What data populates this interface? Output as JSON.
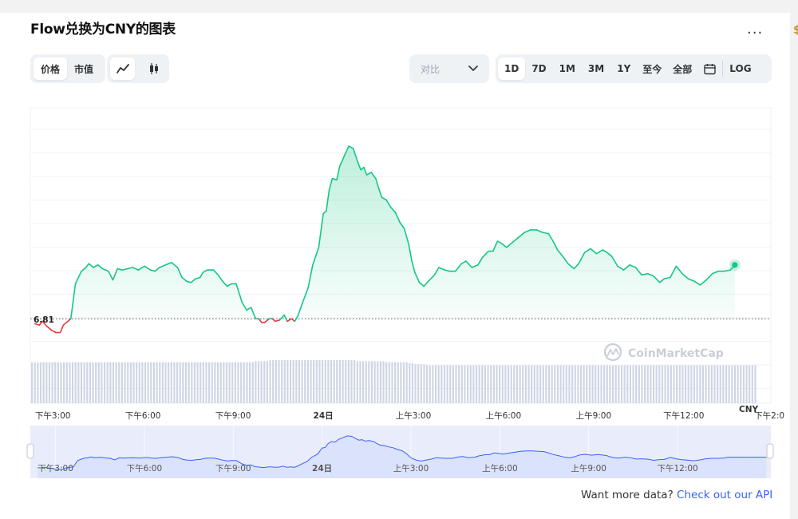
{
  "header": {
    "title": "Flow兑换为CNY的图表",
    "more_label": "...",
    "edge_glyph": "$"
  },
  "toolbar": {
    "type_tabs": [
      {
        "label": "价格",
        "active": true
      },
      {
        "label": "市值",
        "active": false
      }
    ],
    "view_modes": [
      {
        "icon": "line-chart-icon",
        "active": true
      },
      {
        "icon": "candlestick-icon",
        "active": false
      }
    ],
    "compare": {
      "label": "对比",
      "icon": "chevron-down-icon"
    },
    "ranges": [
      {
        "label": "1D",
        "active": true
      },
      {
        "label": "7D",
        "active": false
      },
      {
        "label": "1M",
        "active": false
      },
      {
        "label": "3M",
        "active": false
      },
      {
        "label": "1Y",
        "active": false
      },
      {
        "label": "至今",
        "active": false
      },
      {
        "label": "全部",
        "active": false
      }
    ],
    "calendar_icon": "calendar-icon",
    "log_label": "LOG"
  },
  "chart_data": {
    "type": "area",
    "baseline_value": 6.81,
    "baseline_label": "6.81",
    "currency_label": "CNY",
    "watermark": "CoinMarketCap",
    "x_tick_labels": [
      "下午3:00",
      "下午6:00",
      "下午9:00",
      "24日",
      "上午3:00",
      "上午6:00",
      "上午9:00",
      "下午12:00",
      "下午2:0"
    ],
    "x_tick_hours": [
      0,
      3,
      6,
      9,
      12,
      15,
      18,
      21,
      23.85
    ],
    "x_range_hours": [
      -0.75,
      23.9
    ],
    "y_range": [
      6.55,
      8.4
    ],
    "colors": {
      "up": "#16c784",
      "down": "#ea3943",
      "volume": "#cfd6e4",
      "nav_line": "#3861fb",
      "nav_fill": "#e3e8fb"
    },
    "series": [
      {
        "values": [
          [
            -0.6,
            6.77
          ],
          [
            -0.45,
            6.76
          ],
          [
            -0.35,
            6.79
          ],
          [
            -0.2,
            6.75
          ],
          [
            -0.05,
            6.72
          ],
          [
            0.1,
            6.7
          ],
          [
            0.25,
            6.7
          ],
          [
            0.35,
            6.76
          ],
          [
            0.5,
            6.79
          ],
          [
            0.6,
            6.81
          ],
          [
            0.75,
            7.09
          ],
          [
            0.95,
            7.19
          ],
          [
            1.1,
            7.22
          ],
          [
            1.2,
            7.25
          ],
          [
            1.35,
            7.22
          ],
          [
            1.5,
            7.24
          ],
          [
            1.65,
            7.21
          ],
          [
            1.85,
            7.19
          ],
          [
            2.0,
            7.12
          ],
          [
            2.15,
            7.21
          ],
          [
            2.3,
            7.2
          ],
          [
            2.5,
            7.21
          ],
          [
            2.65,
            7.22
          ],
          [
            2.85,
            7.2
          ],
          [
            3.05,
            7.23
          ],
          [
            3.25,
            7.2
          ],
          [
            3.4,
            7.19
          ],
          [
            3.55,
            7.22
          ],
          [
            3.75,
            7.24
          ],
          [
            3.95,
            7.26
          ],
          [
            4.15,
            7.22
          ],
          [
            4.3,
            7.14
          ],
          [
            4.45,
            7.11
          ],
          [
            4.6,
            7.1
          ],
          [
            4.75,
            7.13
          ],
          [
            4.9,
            7.14
          ],
          [
            5.0,
            7.18
          ],
          [
            5.15,
            7.2
          ],
          [
            5.35,
            7.2
          ],
          [
            5.5,
            7.16
          ],
          [
            5.65,
            7.11
          ],
          [
            5.8,
            7.07
          ],
          [
            5.95,
            7.09
          ],
          [
            6.1,
            7.09
          ],
          [
            6.3,
            6.94
          ],
          [
            6.45,
            6.88
          ],
          [
            6.6,
            6.9
          ],
          [
            6.75,
            6.81
          ],
          [
            6.85,
            6.81
          ],
          [
            6.95,
            6.78
          ],
          [
            7.05,
            6.78
          ],
          [
            7.2,
            6.81
          ],
          [
            7.3,
            6.81
          ],
          [
            7.4,
            6.79
          ],
          [
            7.55,
            6.8
          ],
          [
            7.7,
            6.84
          ],
          [
            7.8,
            6.79
          ],
          [
            7.95,
            6.81
          ],
          [
            8.05,
            6.79
          ],
          [
            8.15,
            6.83
          ],
          [
            8.3,
            6.93
          ],
          [
            8.5,
            7.06
          ],
          [
            8.65,
            7.24
          ],
          [
            8.85,
            7.38
          ],
          [
            9.0,
            7.65
          ],
          [
            9.1,
            7.67
          ],
          [
            9.2,
            7.84
          ],
          [
            9.3,
            7.93
          ],
          [
            9.45,
            7.92
          ],
          [
            9.55,
            8.03
          ],
          [
            9.7,
            8.11
          ],
          [
            9.85,
            8.19
          ],
          [
            10.0,
            8.17
          ],
          [
            10.15,
            8.06
          ],
          [
            10.25,
            8.0
          ],
          [
            10.35,
            8.02
          ],
          [
            10.45,
            7.96
          ],
          [
            10.6,
            7.98
          ],
          [
            10.75,
            7.93
          ],
          [
            10.85,
            7.85
          ],
          [
            10.95,
            7.78
          ],
          [
            11.1,
            7.76
          ],
          [
            11.25,
            7.7
          ],
          [
            11.4,
            7.66
          ],
          [
            11.55,
            7.58
          ],
          [
            11.7,
            7.53
          ],
          [
            11.85,
            7.4
          ],
          [
            11.95,
            7.27
          ],
          [
            12.05,
            7.18
          ],
          [
            12.2,
            7.1
          ],
          [
            12.35,
            7.07
          ],
          [
            12.5,
            7.11
          ],
          [
            12.7,
            7.16
          ],
          [
            12.85,
            7.22
          ],
          [
            13.05,
            7.2
          ],
          [
            13.2,
            7.19
          ],
          [
            13.4,
            7.19
          ],
          [
            13.6,
            7.25
          ],
          [
            13.75,
            7.27
          ],
          [
            13.95,
            7.22
          ],
          [
            14.15,
            7.24
          ],
          [
            14.3,
            7.3
          ],
          [
            14.5,
            7.35
          ],
          [
            14.65,
            7.35
          ],
          [
            14.8,
            7.43
          ],
          [
            14.95,
            7.41
          ],
          [
            15.1,
            7.38
          ],
          [
            15.3,
            7.42
          ],
          [
            15.5,
            7.46
          ],
          [
            15.7,
            7.5
          ],
          [
            15.9,
            7.52
          ],
          [
            16.1,
            7.52
          ],
          [
            16.3,
            7.5
          ],
          [
            16.5,
            7.49
          ],
          [
            16.65,
            7.43
          ],
          [
            16.8,
            7.36
          ],
          [
            17.0,
            7.3
          ],
          [
            17.15,
            7.25
          ],
          [
            17.35,
            7.21
          ],
          [
            17.5,
            7.25
          ],
          [
            17.7,
            7.34
          ],
          [
            17.9,
            7.37
          ],
          [
            18.1,
            7.33
          ],
          [
            18.3,
            7.36
          ],
          [
            18.45,
            7.34
          ],
          [
            18.6,
            7.31
          ],
          [
            18.8,
            7.23
          ],
          [
            19.0,
            7.2
          ],
          [
            19.2,
            7.24
          ],
          [
            19.4,
            7.22
          ],
          [
            19.6,
            7.16
          ],
          [
            19.8,
            7.17
          ],
          [
            20.0,
            7.15
          ],
          [
            20.2,
            7.1
          ],
          [
            20.35,
            7.13
          ],
          [
            20.55,
            7.14
          ],
          [
            20.75,
            7.23
          ],
          [
            20.95,
            7.17
          ],
          [
            21.15,
            7.13
          ],
          [
            21.35,
            7.11
          ],
          [
            21.55,
            7.08
          ],
          [
            21.75,
            7.12
          ],
          [
            21.95,
            7.17
          ],
          [
            22.15,
            7.19
          ],
          [
            22.35,
            7.19
          ],
          [
            22.55,
            7.2
          ],
          [
            22.7,
            7.24
          ]
        ]
      }
    ],
    "volume": [
      40,
      40,
      40,
      40,
      40,
      40,
      40,
      40,
      40,
      40,
      40,
      40,
      40,
      40,
      40,
      40,
      40,
      40,
      40,
      40,
      40,
      40,
      40,
      40,
      40,
      40,
      40,
      40,
      40,
      40,
      40,
      40,
      40,
      40,
      40,
      40,
      40,
      40,
      40,
      40,
      40,
      40,
      40,
      40,
      40,
      40,
      40,
      40,
      40,
      40,
      40,
      40,
      40,
      40,
      40,
      40,
      40,
      40,
      40,
      40,
      40,
      40,
      40,
      40,
      40,
      40,
      40,
      40,
      40,
      40,
      40,
      40,
      40,
      40,
      40,
      40,
      40,
      41,
      41,
      41,
      41,
      41,
      42,
      42,
      42,
      42,
      42,
      42,
      42,
      42,
      42,
      42,
      42,
      42,
      42,
      42,
      42,
      42,
      42,
      42,
      42,
      42,
      42,
      42,
      42,
      42,
      42,
      42,
      42,
      42,
      42,
      42,
      41,
      41,
      41,
      41,
      41,
      41,
      41,
      41,
      41,
      41,
      40,
      40,
      40,
      40,
      40,
      40,
      40,
      40,
      39,
      39,
      38,
      38,
      38,
      38,
      37,
      37,
      37,
      37,
      37,
      37,
      37,
      37,
      37,
      37,
      37,
      37,
      37,
      37,
      37,
      37,
      37,
      37,
      37,
      37,
      37,
      37,
      37,
      37,
      37,
      37,
      37,
      37,
      37,
      37,
      37,
      37,
      37,
      37,
      37,
      37,
      37,
      37,
      37,
      37,
      37,
      37,
      37,
      37,
      37,
      37,
      37,
      37,
      37,
      37,
      37,
      37,
      37,
      37,
      37,
      37,
      37,
      37,
      37,
      37,
      37,
      37,
      37,
      37,
      37,
      37,
      37,
      37,
      37,
      37,
      37,
      37,
      37,
      37,
      37,
      37,
      37,
      37,
      37,
      37,
      37,
      37,
      37,
      37,
      37,
      37,
      37,
      37,
      37,
      37,
      37,
      37,
      37,
      37,
      37,
      37,
      37,
      37,
      37,
      37,
      37,
      37,
      37,
      37,
      37,
      37,
      37,
      37,
      37,
      37,
      37,
      37,
      37,
      37
    ],
    "navigator": {
      "x_tick_labels": [
        "下午3:00",
        "下午6:00",
        "下午9:00",
        "24日",
        "上午3:00",
        "上午6:00",
        "上午9:00",
        "下午12:00"
      ],
      "x_tick_hours": [
        0,
        3,
        6,
        9,
        12,
        15,
        18,
        21
      ],
      "x_range_hours": [
        -0.85,
        24.15
      ]
    }
  },
  "footer": {
    "text": "Want more data?",
    "link": "Check out our API"
  }
}
